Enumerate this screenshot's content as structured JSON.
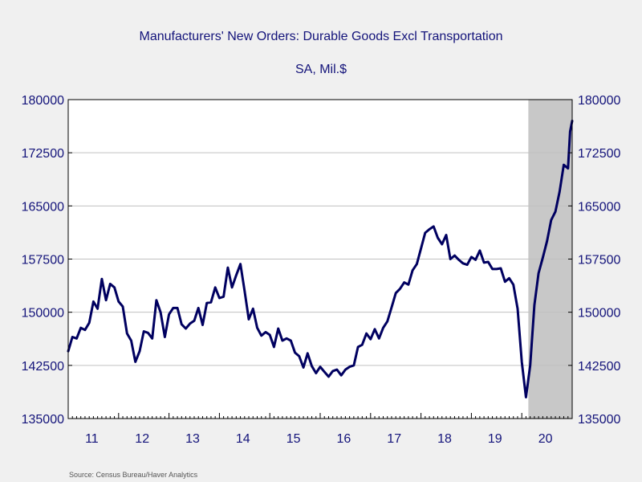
{
  "chart_data": {
    "type": "line",
    "title": "Manufacturers' New Orders: Durable Goods Excl Transportation",
    "subtitle": "SA, Mil.$",
    "source": "Source:  Census Bureau/Haver Analytics",
    "ylim": [
      135000,
      180000
    ],
    "yticks": [
      135000,
      142500,
      150000,
      157500,
      165000,
      172500,
      180000
    ],
    "ytick_labels": [
      "135000",
      "142500",
      "150000",
      "157500",
      "165000",
      "172500",
      "180000"
    ],
    "xlim": [
      2011.0,
      2021.0
    ],
    "xticks": [
      2011,
      2012,
      2013,
      2014,
      2015,
      2016,
      2017,
      2018,
      2019,
      2020
    ],
    "xtick_labels": [
      "11",
      "12",
      "13",
      "14",
      "15",
      "16",
      "17",
      "18",
      "19",
      "20"
    ],
    "recession_shading": {
      "start": 2020.13,
      "end": 2021.0,
      "color": "#c8c8c8"
    },
    "grid": "horizontal",
    "line_color": "#000060",
    "series": [
      {
        "values": [
          [
            2011.0,
            144500
          ],
          [
            2011.083,
            146500
          ],
          [
            2011.167,
            146300
          ],
          [
            2011.25,
            147800
          ],
          [
            2011.333,
            147500
          ],
          [
            2011.417,
            148500
          ],
          [
            2011.5,
            151500
          ],
          [
            2011.583,
            150500
          ],
          [
            2011.667,
            154700
          ],
          [
            2011.75,
            151700
          ],
          [
            2011.833,
            154000
          ],
          [
            2011.917,
            153500
          ],
          [
            2012.0,
            151500
          ],
          [
            2012.083,
            150800
          ],
          [
            2012.167,
            147000
          ],
          [
            2012.25,
            146000
          ],
          [
            2012.333,
            143000
          ],
          [
            2012.417,
            144500
          ],
          [
            2012.5,
            147300
          ],
          [
            2012.583,
            147100
          ],
          [
            2012.667,
            146300
          ],
          [
            2012.75,
            151700
          ],
          [
            2012.833,
            150000
          ],
          [
            2012.917,
            146500
          ],
          [
            2013.0,
            149700
          ],
          [
            2013.083,
            150600
          ],
          [
            2013.167,
            150600
          ],
          [
            2013.25,
            148300
          ],
          [
            2013.333,
            147700
          ],
          [
            2013.417,
            148400
          ],
          [
            2013.5,
            148800
          ],
          [
            2013.583,
            150600
          ],
          [
            2013.667,
            148200
          ],
          [
            2013.75,
            151300
          ],
          [
            2013.833,
            151400
          ],
          [
            2013.917,
            153500
          ],
          [
            2014.0,
            152000
          ],
          [
            2014.083,
            152200
          ],
          [
            2014.167,
            156300
          ],
          [
            2014.25,
            153500
          ],
          [
            2014.333,
            155200
          ],
          [
            2014.417,
            156800
          ],
          [
            2014.5,
            153000
          ],
          [
            2014.583,
            149000
          ],
          [
            2014.667,
            150500
          ],
          [
            2014.75,
            147800
          ],
          [
            2014.833,
            146700
          ],
          [
            2014.917,
            147200
          ],
          [
            2015.0,
            146800
          ],
          [
            2015.083,
            145100
          ],
          [
            2015.167,
            147700
          ],
          [
            2015.25,
            146000
          ],
          [
            2015.333,
            146300
          ],
          [
            2015.417,
            146000
          ],
          [
            2015.5,
            144300
          ],
          [
            2015.583,
            143800
          ],
          [
            2015.667,
            142200
          ],
          [
            2015.75,
            144200
          ],
          [
            2015.833,
            142400
          ],
          [
            2015.917,
            141400
          ],
          [
            2016.0,
            142300
          ],
          [
            2016.083,
            141600
          ],
          [
            2016.167,
            140900
          ],
          [
            2016.25,
            141700
          ],
          [
            2016.333,
            141900
          ],
          [
            2016.417,
            141100
          ],
          [
            2016.5,
            141900
          ],
          [
            2016.583,
            142300
          ],
          [
            2016.667,
            142500
          ],
          [
            2016.75,
            145100
          ],
          [
            2016.833,
            145400
          ],
          [
            2016.917,
            147000
          ],
          [
            2017.0,
            146200
          ],
          [
            2017.083,
            147600
          ],
          [
            2017.167,
            146300
          ],
          [
            2017.25,
            147800
          ],
          [
            2017.333,
            148700
          ],
          [
            2017.417,
            150700
          ],
          [
            2017.5,
            152700
          ],
          [
            2017.583,
            153300
          ],
          [
            2017.667,
            154200
          ],
          [
            2017.75,
            153900
          ],
          [
            2017.833,
            155900
          ],
          [
            2017.917,
            156800
          ],
          [
            2018.0,
            159000
          ],
          [
            2018.083,
            161200
          ],
          [
            2018.167,
            161700
          ],
          [
            2018.25,
            162100
          ],
          [
            2018.333,
            160500
          ],
          [
            2018.417,
            159600
          ],
          [
            2018.5,
            160900
          ],
          [
            2018.583,
            157500
          ],
          [
            2018.667,
            158000
          ],
          [
            2018.75,
            157400
          ],
          [
            2018.833,
            156900
          ],
          [
            2018.917,
            156700
          ],
          [
            2019.0,
            157800
          ],
          [
            2019.083,
            157400
          ],
          [
            2019.167,
            158700
          ],
          [
            2019.25,
            157000
          ],
          [
            2019.333,
            157100
          ],
          [
            2019.417,
            156100
          ],
          [
            2019.5,
            156100
          ],
          [
            2019.583,
            156200
          ],
          [
            2019.667,
            154300
          ],
          [
            2019.75,
            154800
          ],
          [
            2019.833,
            153900
          ],
          [
            2019.917,
            150500
          ],
          [
            2020.0,
            143000
          ],
          [
            2020.083,
            138000
          ],
          [
            2020.167,
            142500
          ],
          [
            2020.25,
            151000
          ],
          [
            2020.333,
            155500
          ],
          [
            2020.417,
            157700
          ],
          [
            2020.5,
            160000
          ],
          [
            2020.583,
            163000
          ],
          [
            2020.667,
            164200
          ],
          [
            2020.75,
            167000
          ],
          [
            2020.833,
            170800
          ],
          [
            2020.917,
            170300
          ],
          [
            2020.958,
            175500
          ],
          [
            2021.0,
            177000
          ]
        ]
      }
    ]
  }
}
